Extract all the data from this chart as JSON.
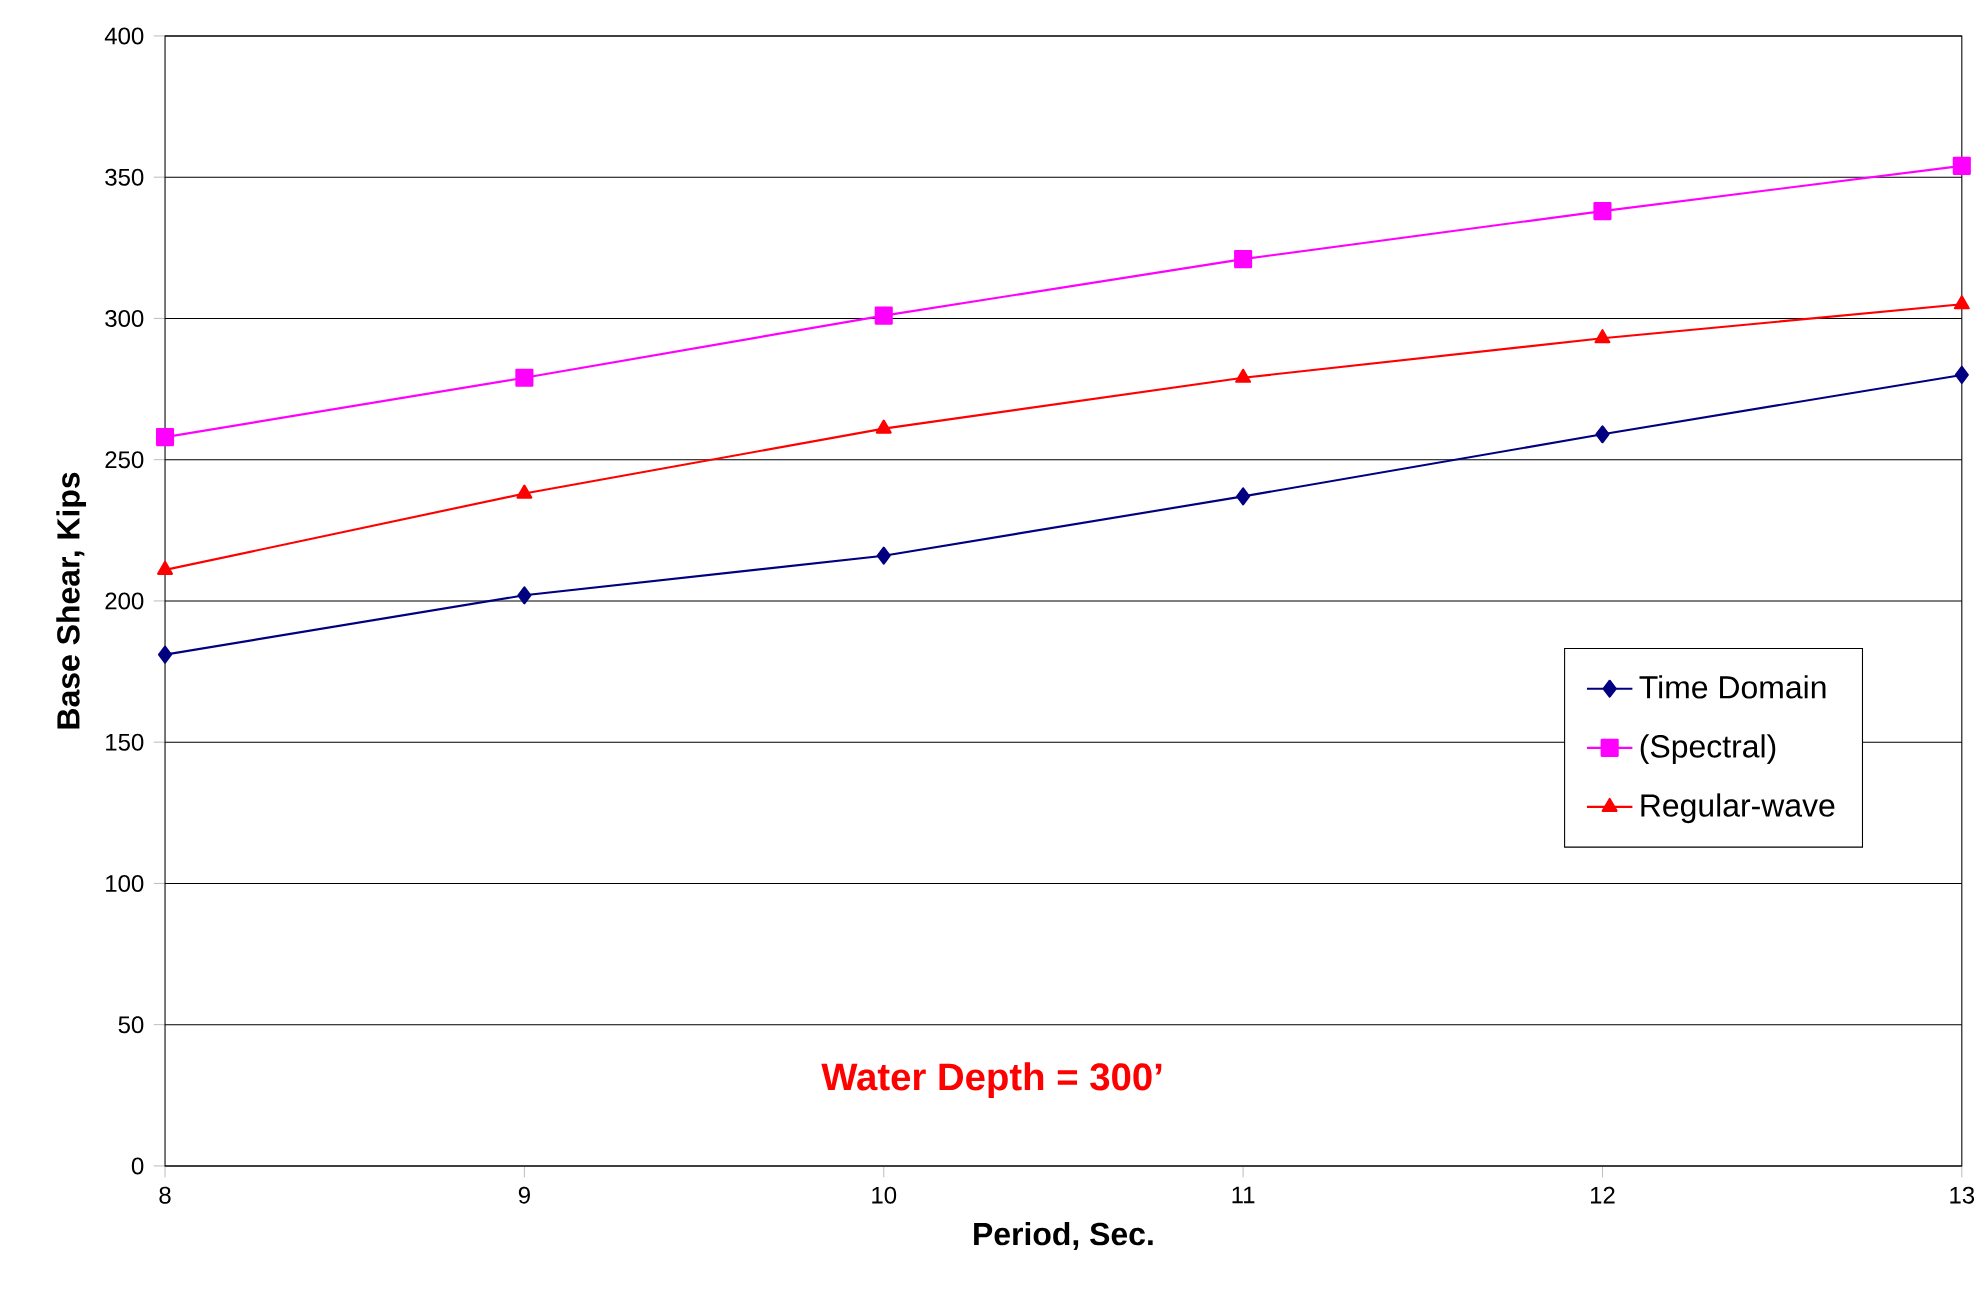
{
  "chart_data": {
    "type": "line",
    "xlabel": "Period, Sec.",
    "ylabel": "Base Shear, Kips",
    "x": [
      8,
      9,
      10,
      11,
      12,
      13
    ],
    "series": [
      {
        "name": "Time Domain",
        "color": "#000080",
        "marker": "diamond",
        "values": [
          181,
          202,
          216,
          237,
          259,
          280
        ]
      },
      {
        "name": "(Spectral)",
        "color": "#ff00ff",
        "marker": "square",
        "values": [
          258,
          279,
          301,
          321,
          338,
          354
        ]
      },
      {
        "name": "Regular-wave",
        "color": "#ff0000",
        "marker": "triangle",
        "values": [
          211,
          238,
          261,
          279,
          293,
          305
        ]
      }
    ],
    "xlim": [
      8,
      13
    ],
    "xticks": [
      8,
      9,
      10,
      11,
      12,
      13
    ],
    "ylim": [
      0,
      400
    ],
    "yticks": [
      0,
      50,
      100,
      150,
      200,
      250,
      300,
      350,
      400
    ],
    "grid": "y",
    "legend": "right",
    "annotations": [
      "Water Depth = 300’"
    ]
  }
}
